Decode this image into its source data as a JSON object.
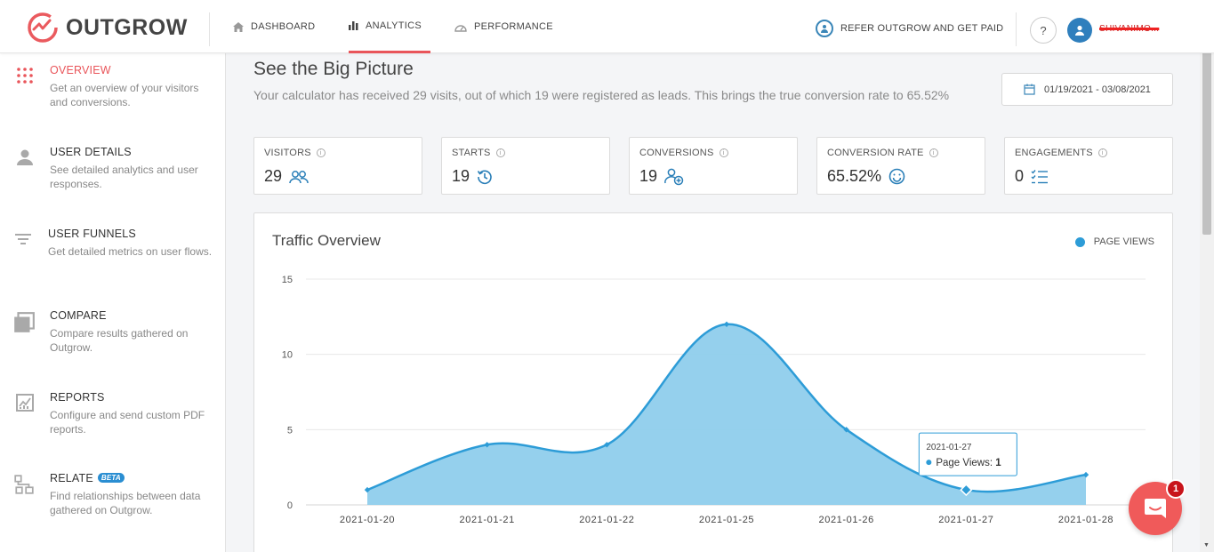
{
  "header": {
    "logo_text": "OUTGROW",
    "nav": [
      {
        "label": "DASHBOARD",
        "icon": "home-icon"
      },
      {
        "label": "ANALYTICS",
        "icon": "bar-chart-icon",
        "active": true
      },
      {
        "label": "PERFORMANCE",
        "icon": "gauge-icon"
      }
    ],
    "refer_label": "REFER OUTGROW AND GET PAID",
    "help_label": "?",
    "username": "SHIVANIMO..."
  },
  "sidebar": {
    "items": [
      {
        "title": "OVERVIEW",
        "desc": "Get an overview of your visitors and conversions.",
        "icon": "grid-dots-icon",
        "active": true
      },
      {
        "title": "USER DETAILS",
        "desc": "See detailed analytics and user responses.",
        "icon": "user-icon"
      },
      {
        "title": "USER FUNNELS",
        "desc": "Get detailed metrics on user flows.",
        "icon": "filter-icon"
      },
      {
        "title": "COMPARE",
        "desc": "Compare results gathered on Outgrow.",
        "icon": "compare-icon"
      },
      {
        "title": "REPORTS",
        "desc": "Configure and send custom PDF reports.",
        "icon": "report-icon"
      },
      {
        "title": "RELATE",
        "badge": "BETA",
        "desc": "Find relationships between data gathered on Outgrow.",
        "icon": "hierarchy-icon"
      }
    ]
  },
  "main": {
    "heading": "See the Big Picture",
    "subtext": "Your calculator has received 29 visits, out of which 19 were registered as leads. This brings the true conversion rate to 65.52%",
    "date_range": "01/19/2021 - 03/08/2021",
    "cards": [
      {
        "label": "VISITORS",
        "value": "29",
        "icon": "users-icon"
      },
      {
        "label": "STARTS",
        "value": "19",
        "icon": "history-icon"
      },
      {
        "label": "CONVERSIONS",
        "value": "19",
        "icon": "user-add-icon"
      },
      {
        "label": "CONVERSION RATE",
        "value": "65.52%",
        "icon": "smile-icon"
      },
      {
        "label": "ENGAGEMENTS",
        "value": "0",
        "icon": "checklist-icon"
      }
    ],
    "info_glyph": "i"
  },
  "chart_data": {
    "type": "area",
    "title": "Traffic Overview",
    "categories": [
      "2021-01-20",
      "2021-01-21",
      "2021-01-22",
      "2021-01-25",
      "2021-01-26",
      "2021-01-27",
      "2021-01-28"
    ],
    "series": [
      {
        "name": "PAGE VIEWS",
        "values": [
          1,
          4,
          4,
          12,
          5,
          1,
          2
        ]
      }
    ],
    "yticks": [
      0,
      5,
      10,
      15
    ],
    "ylim": [
      0,
      15
    ],
    "legend": "top-right",
    "grid": true,
    "color": "#2d9cd7",
    "fill": "#8fcdec",
    "tooltip": {
      "date": "2021-01-27",
      "label": "Page Views:",
      "value": "1"
    }
  },
  "chat": {
    "badge": "1"
  }
}
